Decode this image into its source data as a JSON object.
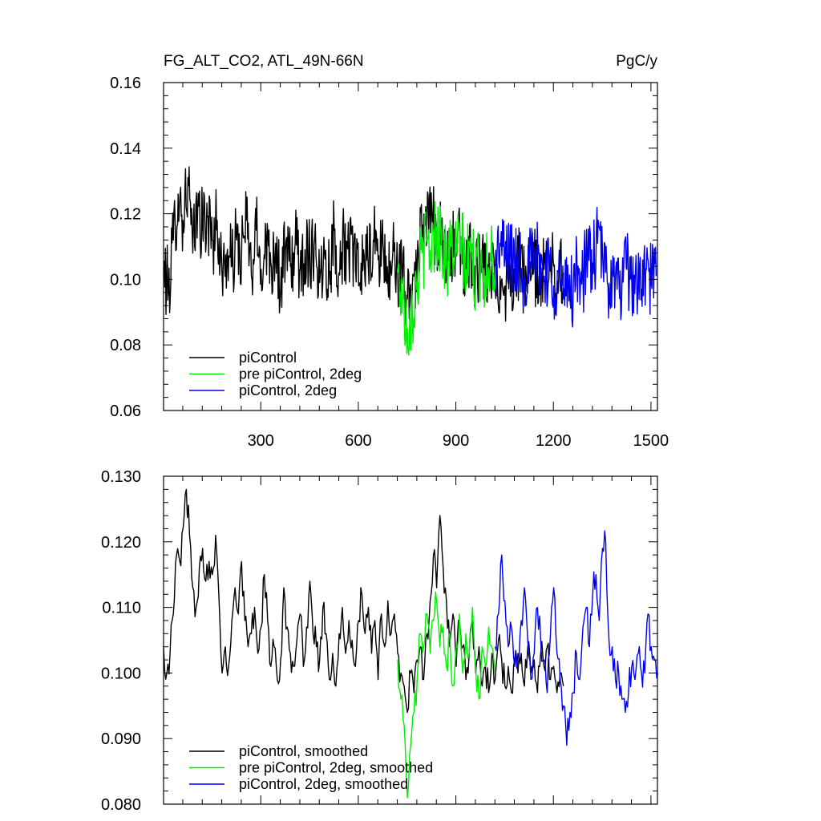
{
  "chart_data": [
    {
      "type": "line",
      "title_left": "FG_ALT_CO2, ATL_49N-66N",
      "title_right": "PgC/y",
      "xlim": [
        1,
        1520
      ],
      "ylim": [
        0.06,
        0.16
      ],
      "x_ticks": [
        300,
        600,
        900,
        1200,
        1500
      ],
      "x_tick_labels": [
        "300",
        "600",
        "900",
        "1200",
        "1500"
      ],
      "y_ticks": [
        0.06,
        0.08,
        0.1,
        0.12,
        0.14,
        0.16
      ],
      "y_tick_labels": [
        "0.06",
        "0.08",
        "0.10",
        "0.12",
        "0.14",
        "0.16"
      ],
      "legend_position": "bottom-left",
      "series": [
        {
          "name": "piControl",
          "color": "#000000",
          "x": [
            1,
            16,
            31,
            46,
            61,
            76,
            91,
            106,
            121,
            136,
            151,
            166,
            181,
            196,
            211,
            226,
            241,
            256,
            271,
            286,
            301,
            316,
            331,
            346,
            361,
            376,
            391,
            406,
            421,
            436,
            451,
            466,
            481,
            496,
            511,
            526,
            541,
            556,
            571,
            586,
            601,
            616,
            631,
            646,
            661,
            676,
            691,
            706,
            721,
            736,
            751,
            766,
            781,
            796,
            811,
            826,
            841,
            856,
            871,
            886,
            901,
            916,
            931,
            946,
            961,
            976,
            991,
            1006,
            1021,
            1036,
            1051,
            1066,
            1081,
            1096,
            1111,
            1126,
            1141,
            1156,
            1171,
            1186,
            1201,
            1216,
            1231
          ],
          "y": [
            0.103,
            0.097,
            0.112,
            0.126,
            0.118,
            0.131,
            0.108,
            0.122,
            0.116,
            0.119,
            0.112,
            0.118,
            0.101,
            0.108,
            0.104,
            0.112,
            0.107,
            0.118,
            0.101,
            0.115,
            0.103,
            0.113,
            0.105,
            0.111,
            0.097,
            0.109,
            0.104,
            0.111,
            0.103,
            0.109,
            0.107,
            0.113,
            0.099,
            0.108,
            0.103,
            0.115,
            0.102,
            0.112,
            0.106,
            0.11,
            0.098,
            0.109,
            0.103,
            0.112,
            0.106,
            0.111,
            0.099,
            0.108,
            0.103,
            0.101,
            0.094,
            0.098,
            0.105,
            0.113,
            0.118,
            0.121,
            0.112,
            0.116,
            0.104,
            0.111,
            0.107,
            0.112,
            0.102,
            0.109,
            0.101,
            0.105,
            0.1,
            0.104,
            0.097,
            0.101,
            0.098,
            0.103,
            0.099,
            0.105,
            0.1,
            0.102,
            0.104,
            0.101,
            0.103,
            0.1,
            0.104,
            0.099,
            0.102
          ]
        },
        {
          "name": "pre piControl, 2deg",
          "color": "#00ee00",
          "x": [
            721,
            736,
            751,
            766,
            781,
            796,
            811,
            826,
            841,
            856,
            871,
            886,
            901,
            916,
            931,
            946,
            961,
            976,
            991,
            1006,
            1021
          ],
          "y": [
            0.102,
            0.094,
            0.085,
            0.091,
            0.099,
            0.108,
            0.111,
            0.109,
            0.116,
            0.112,
            0.104,
            0.11,
            0.107,
            0.113,
            0.103,
            0.109,
            0.1,
            0.106,
            0.101,
            0.108,
            0.104
          ]
        },
        {
          "name": "piControl, 2deg",
          "color": "#0000ee",
          "x": [
            1021,
            1036,
            1051,
            1066,
            1081,
            1096,
            1111,
            1126,
            1141,
            1156,
            1171,
            1186,
            1201,
            1216,
            1231,
            1246,
            1261,
            1276,
            1291,
            1306,
            1321,
            1336,
            1351,
            1366,
            1381,
            1396,
            1411,
            1426,
            1441,
            1456,
            1471,
            1486,
            1501,
            1516
          ],
          "y": [
            0.104,
            0.111,
            0.107,
            0.109,
            0.103,
            0.108,
            0.101,
            0.106,
            0.104,
            0.107,
            0.101,
            0.105,
            0.098,
            0.102,
            0.094,
            0.099,
            0.097,
            0.104,
            0.101,
            0.107,
            0.105,
            0.111,
            0.108,
            0.099,
            0.101,
            0.097,
            0.099,
            0.103,
            0.099,
            0.1,
            0.097,
            0.103,
            0.099,
            0.101
          ]
        }
      ]
    },
    {
      "type": "line",
      "xlim": [
        1,
        1520
      ],
      "ylim": [
        0.08,
        0.13
      ],
      "x_ticks": [
        300,
        600,
        900,
        1200,
        1500
      ],
      "y_ticks": [
        0.08,
        0.09,
        0.1,
        0.11,
        0.12,
        0.13
      ],
      "y_tick_labels": [
        "0.080",
        "0.090",
        "0.100",
        "0.110",
        "0.120",
        "0.130"
      ],
      "legend_position": "bottom-left",
      "series": [
        {
          "name": "piControl, smoothed",
          "color": "#000000",
          "x": [
            1,
            11,
            21,
            31,
            41,
            51,
            61,
            71,
            81,
            91,
            101,
            111,
            121,
            131,
            141,
            151,
            161,
            171,
            181,
            191,
            201,
            211,
            221,
            231,
            241,
            251,
            261,
            271,
            281,
            291,
            301,
            311,
            321,
            331,
            341,
            351,
            361,
            371,
            381,
            391,
            401,
            411,
            421,
            431,
            441,
            451,
            461,
            471,
            481,
            491,
            501,
            511,
            521,
            531,
            541,
            551,
            561,
            571,
            581,
            591,
            601,
            611,
            621,
            631,
            641,
            651,
            661,
            671,
            681,
            691,
            701,
            711,
            721,
            731,
            741,
            751,
            761,
            771,
            781,
            791,
            801,
            811,
            821,
            831,
            841,
            851,
            861,
            871,
            881,
            891,
            901,
            911,
            921,
            931,
            941,
            951,
            961,
            971,
            981,
            991,
            1001,
            1011,
            1021,
            1031,
            1041,
            1051,
            1061,
            1071,
            1081,
            1091,
            1101,
            1111,
            1121,
            1131,
            1141,
            1151,
            1161,
            1171,
            1181,
            1191,
            1201,
            1211,
            1221,
            1231
          ],
          "y": [
            0.104,
            0.1,
            0.103,
            0.109,
            0.118,
            0.117,
            0.122,
            0.128,
            0.121,
            0.113,
            0.11,
            0.116,
            0.119,
            0.114,
            0.117,
            0.115,
            0.121,
            0.112,
            0.1,
            0.104,
            0.101,
            0.108,
            0.113,
            0.109,
            0.117,
            0.108,
            0.104,
            0.106,
            0.11,
            0.103,
            0.107,
            0.115,
            0.108,
            0.101,
            0.104,
            0.099,
            0.102,
            0.113,
            0.107,
            0.103,
            0.101,
            0.105,
            0.109,
            0.101,
            0.107,
            0.114,
            0.106,
            0.104,
            0.102,
            0.11,
            0.106,
            0.099,
            0.103,
            0.098,
            0.106,
            0.11,
            0.103,
            0.108,
            0.105,
            0.101,
            0.108,
            0.112,
            0.106,
            0.11,
            0.103,
            0.108,
            0.099,
            0.109,
            0.104,
            0.111,
            0.106,
            0.109,
            0.103,
            0.1,
            0.098,
            0.094,
            0.1,
            0.097,
            0.102,
            0.104,
            0.099,
            0.106,
            0.111,
            0.118,
            0.113,
            0.124,
            0.116,
            0.111,
            0.104,
            0.109,
            0.101,
            0.108,
            0.104,
            0.099,
            0.103,
            0.108,
            0.1,
            0.104,
            0.098,
            0.101,
            0.097,
            0.103,
            0.099,
            0.105,
            0.102,
            0.098,
            0.101,
            0.097,
            0.102,
            0.1,
            0.103,
            0.098,
            0.104,
            0.1,
            0.102,
            0.097,
            0.103,
            0.101,
            0.104,
            0.099,
            0.101,
            0.097,
            0.1,
            0.098
          ]
        },
        {
          "name": "pre piControl, 2deg, smoothed",
          "color": "#00ee00",
          "x": [
            721,
            731,
            741,
            751,
            761,
            771,
            781,
            791,
            801,
            811,
            821,
            831,
            841,
            851,
            861,
            871,
            881,
            891,
            901,
            911,
            921,
            931,
            941,
            951,
            961,
            971,
            981,
            991,
            1001,
            1011,
            1021
          ],
          "y": [
            0.102,
            0.096,
            0.092,
            0.081,
            0.089,
            0.094,
            0.099,
            0.106,
            0.104,
            0.109,
            0.103,
            0.108,
            0.111,
            0.104,
            0.107,
            0.101,
            0.106,
            0.098,
            0.104,
            0.109,
            0.1,
            0.106,
            0.103,
            0.11,
            0.101,
            0.096,
            0.104,
            0.101,
            0.107,
            0.104,
            0.1
          ]
        },
        {
          "name": "piControl, 2deg, smoothed",
          "color": "#0000ee",
          "x": [
            1021,
            1031,
            1041,
            1051,
            1061,
            1071,
            1081,
            1091,
            1101,
            1111,
            1121,
            1131,
            1141,
            1151,
            1161,
            1171,
            1181,
            1191,
            1201,
            1211,
            1221,
            1231,
            1241,
            1251,
            1261,
            1271,
            1281,
            1291,
            1301,
            1311,
            1321,
            1331,
            1341,
            1351,
            1361,
            1371,
            1381,
            1391,
            1401,
            1411,
            1421,
            1431,
            1441,
            1451,
            1461,
            1471,
            1481,
            1491,
            1501,
            1511,
            1521
          ],
          "y": [
            0.104,
            0.109,
            0.118,
            0.111,
            0.104,
            0.107,
            0.101,
            0.103,
            0.108,
            0.113,
            0.105,
            0.099,
            0.103,
            0.11,
            0.105,
            0.102,
            0.097,
            0.106,
            0.113,
            0.103,
            0.099,
            0.095,
            0.089,
            0.094,
            0.097,
            0.103,
            0.099,
            0.107,
            0.11,
            0.104,
            0.112,
            0.115,
            0.108,
            0.119,
            0.12,
            0.105,
            0.104,
            0.099,
            0.1,
            0.096,
            0.094,
            0.097,
            0.101,
            0.099,
            0.103,
            0.1,
            0.1,
            0.109,
            0.104,
            0.102,
            0.1
          ]
        }
      ]
    }
  ]
}
